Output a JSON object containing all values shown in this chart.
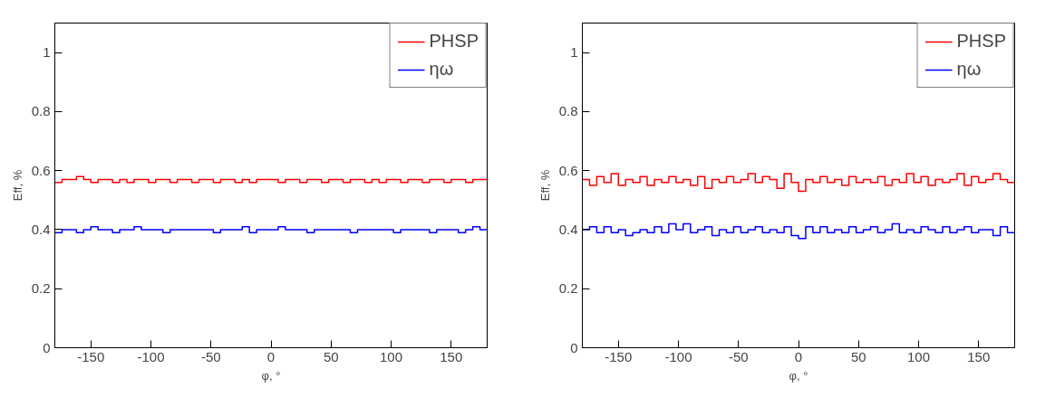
{
  "chart_data": [
    {
      "type": "histogram",
      "xlabel": "φ, °",
      "ylabel": "Eff, %",
      "xlim": [
        -180,
        180
      ],
      "ylim": [
        0,
        1.1
      ],
      "xticks": [
        -150,
        -100,
        -50,
        0,
        50,
        100,
        150
      ],
      "yticks": [
        0,
        0.2,
        0.4,
        0.6,
        0.8,
        1
      ],
      "grid": false,
      "legend": "top right",
      "bins": [
        -180,
        -174,
        -168,
        -162,
        -156,
        -150,
        -144,
        -138,
        -132,
        -126,
        -120,
        -114,
        -108,
        -102,
        -96,
        -90,
        -84,
        -78,
        -72,
        -66,
        -60,
        -54,
        -48,
        -42,
        -36,
        -30,
        -24,
        -18,
        -12,
        -6,
        0,
        6,
        12,
        18,
        24,
        30,
        36,
        42,
        48,
        54,
        60,
        66,
        72,
        78,
        84,
        90,
        96,
        102,
        108,
        114,
        120,
        126,
        132,
        138,
        144,
        150,
        156,
        162,
        168,
        174,
        180
      ],
      "series": [
        {
          "name": "PHSP",
          "color": "#ff0000",
          "values": [
            0.56,
            0.57,
            0.57,
            0.58,
            0.57,
            0.56,
            0.57,
            0.57,
            0.56,
            0.57,
            0.56,
            0.57,
            0.57,
            0.56,
            0.57,
            0.57,
            0.56,
            0.57,
            0.57,
            0.56,
            0.57,
            0.57,
            0.56,
            0.57,
            0.57,
            0.56,
            0.57,
            0.56,
            0.57,
            0.57,
            0.57,
            0.56,
            0.57,
            0.57,
            0.56,
            0.57,
            0.57,
            0.56,
            0.57,
            0.57,
            0.56,
            0.57,
            0.57,
            0.56,
            0.57,
            0.56,
            0.57,
            0.57,
            0.56,
            0.57,
            0.57,
            0.56,
            0.57,
            0.57,
            0.56,
            0.57,
            0.57,
            0.56,
            0.57,
            0.57
          ]
        },
        {
          "name": "ηω",
          "color": "#0000ff",
          "values": [
            0.39,
            0.4,
            0.4,
            0.39,
            0.4,
            0.41,
            0.4,
            0.4,
            0.39,
            0.4,
            0.4,
            0.41,
            0.4,
            0.4,
            0.4,
            0.39,
            0.4,
            0.4,
            0.4,
            0.4,
            0.4,
            0.4,
            0.39,
            0.4,
            0.4,
            0.4,
            0.41,
            0.39,
            0.4,
            0.4,
            0.4,
            0.41,
            0.4,
            0.4,
            0.4,
            0.39,
            0.4,
            0.4,
            0.4,
            0.4,
            0.4,
            0.39,
            0.4,
            0.4,
            0.4,
            0.4,
            0.4,
            0.39,
            0.4,
            0.4,
            0.4,
            0.4,
            0.39,
            0.4,
            0.4,
            0.4,
            0.39,
            0.4,
            0.41,
            0.4
          ]
        }
      ]
    },
    {
      "type": "histogram",
      "xlabel": "φ, °",
      "ylabel": "Eff, %",
      "xlim": [
        -180,
        180
      ],
      "ylim": [
        0,
        1.1
      ],
      "xticks": [
        -150,
        -100,
        -50,
        0,
        50,
        100,
        150
      ],
      "yticks": [
        0,
        0.2,
        0.4,
        0.6,
        0.8,
        1
      ],
      "grid": false,
      "legend": "top right",
      "bins": [
        -180,
        -174,
        -168,
        -162,
        -156,
        -150,
        -144,
        -138,
        -132,
        -126,
        -120,
        -114,
        -108,
        -102,
        -96,
        -90,
        -84,
        -78,
        -72,
        -66,
        -60,
        -54,
        -48,
        -42,
        -36,
        -30,
        -24,
        -18,
        -12,
        -6,
        0,
        6,
        12,
        18,
        24,
        30,
        36,
        42,
        48,
        54,
        60,
        66,
        72,
        78,
        84,
        90,
        96,
        102,
        108,
        114,
        120,
        126,
        132,
        138,
        144,
        150,
        156,
        162,
        168,
        174,
        180
      ],
      "series": [
        {
          "name": "PHSP",
          "color": "#ff0000",
          "values": [
            0.57,
            0.55,
            0.58,
            0.56,
            0.59,
            0.55,
            0.57,
            0.56,
            0.58,
            0.55,
            0.57,
            0.56,
            0.58,
            0.56,
            0.57,
            0.55,
            0.58,
            0.54,
            0.57,
            0.56,
            0.58,
            0.56,
            0.57,
            0.59,
            0.56,
            0.58,
            0.57,
            0.54,
            0.59,
            0.56,
            0.53,
            0.57,
            0.56,
            0.58,
            0.56,
            0.57,
            0.55,
            0.58,
            0.56,
            0.57,
            0.56,
            0.58,
            0.55,
            0.57,
            0.56,
            0.59,
            0.56,
            0.58,
            0.55,
            0.57,
            0.56,
            0.57,
            0.59,
            0.55,
            0.58,
            0.56,
            0.57,
            0.59,
            0.57,
            0.56
          ]
        },
        {
          "name": "ηω",
          "color": "#0000ff",
          "values": [
            0.4,
            0.41,
            0.39,
            0.41,
            0.39,
            0.4,
            0.38,
            0.39,
            0.4,
            0.39,
            0.41,
            0.39,
            0.42,
            0.4,
            0.42,
            0.39,
            0.4,
            0.41,
            0.38,
            0.4,
            0.39,
            0.41,
            0.39,
            0.4,
            0.41,
            0.39,
            0.4,
            0.39,
            0.41,
            0.38,
            0.37,
            0.41,
            0.39,
            0.41,
            0.39,
            0.4,
            0.39,
            0.41,
            0.39,
            0.4,
            0.41,
            0.39,
            0.4,
            0.42,
            0.39,
            0.4,
            0.39,
            0.41,
            0.4,
            0.39,
            0.41,
            0.39,
            0.4,
            0.41,
            0.39,
            0.4,
            0.4,
            0.38,
            0.41,
            0.39
          ]
        }
      ]
    }
  ]
}
